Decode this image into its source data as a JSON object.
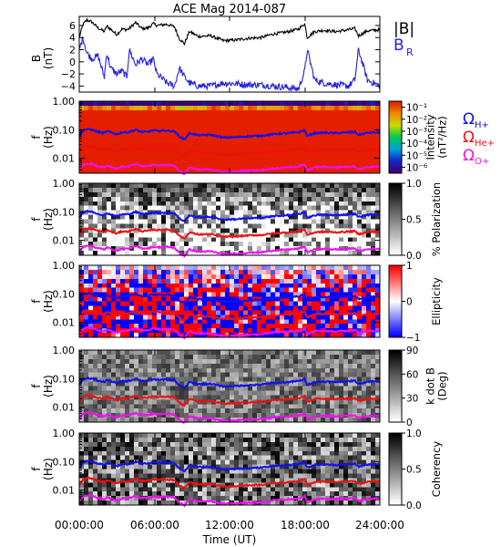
{
  "chart_data": {
    "type": "line",
    "title": "ACE Mag 2014-087",
    "xlabel": "Time (UT)",
    "x_ticks": [
      "00:00:00",
      "06:00:00",
      "12:00:00",
      "18:00:00",
      "24:00:00"
    ],
    "x_range_hours": [
      0,
      24
    ],
    "b_panel": {
      "ylabel": [
        "B",
        "(nT)"
      ],
      "y_ticks": [
        6,
        4,
        2,
        0,
        -2,
        -4
      ],
      "ylim": [
        -5,
        7.5
      ],
      "series": [
        {
          "name": "|B|",
          "color": "#000000",
          "t_hours": [
            0,
            0.3,
            0.6,
            1.0,
            1.5,
            2.0,
            2.2,
            2.5,
            3.0,
            3.4,
            3.8,
            4.0,
            4.5,
            5.0,
            5.5,
            5.9,
            6.2,
            7.0,
            7.6,
            8.0,
            8.4,
            8.8,
            9.5,
            10.5,
            11.5,
            12.5,
            13.5,
            14.5,
            15.5,
            16.5,
            17.5,
            18.0,
            18.2,
            18.8,
            19.5,
            20.5,
            21.5,
            22.0,
            22.3,
            23.0,
            24.0
          ],
          "values": [
            4.0,
            6.2,
            6.9,
            6.6,
            5.6,
            5.0,
            5.9,
            5.4,
            4.5,
            5.4,
            5.3,
            5.5,
            6.5,
            5.5,
            5.6,
            6.3,
            6.0,
            6.2,
            5.8,
            3.8,
            3.0,
            5.0,
            4.2,
            4.3,
            3.5,
            3.6,
            3.9,
            4.0,
            4.6,
            4.9,
            5.4,
            6.3,
            4.0,
            5.0,
            5.2,
            5.0,
            5.3,
            5.5,
            4.3,
            5.1,
            5.3
          ]
        },
        {
          "name": "B_R",
          "color": "#2222dd",
          "t_hours": [
            0,
            0.3,
            0.6,
            1.0,
            1.5,
            2.0,
            2.2,
            2.5,
            3.0,
            3.4,
            3.8,
            4.0,
            4.5,
            5.0,
            5.5,
            5.9,
            6.2,
            7.0,
            7.6,
            8.0,
            8.4,
            8.8,
            9.5,
            10.5,
            11.5,
            12.5,
            13.5,
            14.5,
            15.5,
            16.5,
            17.5,
            18.0,
            18.2,
            18.8,
            19.5,
            20.5,
            21.5,
            22.0,
            22.3,
            23.0,
            24.0
          ],
          "values": [
            2.0,
            4.0,
            1.5,
            0.5,
            1.0,
            -2.5,
            1.5,
            -1.0,
            -2.0,
            -1.5,
            -2.5,
            2.0,
            -0.5,
            0.5,
            -0.5,
            0.5,
            -2.0,
            -3.5,
            -4.0,
            -1.0,
            -2.5,
            -3.5,
            -4.0,
            -4.0,
            -3.5,
            -3.6,
            -3.8,
            -3.8,
            -4.0,
            -4.2,
            -4.5,
            -1.5,
            2.0,
            -3.0,
            -3.5,
            -3.8,
            -4.0,
            -3.0,
            2.0,
            -3.0,
            -4.0
          ]
        }
      ]
    },
    "spectral_panels": {
      "ylabel": [
        "f",
        "(Hz)"
      ],
      "y_ticks": [
        "1.00",
        "0.10",
        "0.01"
      ],
      "ylim_hz": [
        0.003,
        1.0
      ],
      "y_scale": "log",
      "gyrofrequency_lines": [
        {
          "name": "ΩH+",
          "color": "#1111ee",
          "t_hours": [
            0,
            0.3,
            0.6,
            1.0,
            1.5,
            2.0,
            2.2,
            2.5,
            3.0,
            3.4,
            3.8,
            4.0,
            4.5,
            5.0,
            5.5,
            5.9,
            6.2,
            7.0,
            7.6,
            8.0,
            8.4,
            8.8,
            9.5,
            10.5,
            11.5,
            12.5,
            13.5,
            14.5,
            15.5,
            16.5,
            17.5,
            18.0,
            18.2,
            18.8,
            19.5,
            20.5,
            21.5,
            22.0,
            22.3,
            23.0,
            24.0
          ],
          "values_hz": [
            0.061,
            0.094,
            0.105,
            0.1,
            0.085,
            0.076,
            0.09,
            0.082,
            0.069,
            0.082,
            0.081,
            0.084,
            0.099,
            0.084,
            0.085,
            0.096,
            0.091,
            0.094,
            0.088,
            0.058,
            0.046,
            0.076,
            0.064,
            0.066,
            0.053,
            0.055,
            0.059,
            0.061,
            0.07,
            0.075,
            0.082,
            0.096,
            0.061,
            0.076,
            0.079,
            0.076,
            0.081,
            0.084,
            0.066,
            0.078,
            0.081
          ]
        },
        {
          "name": "ΩHe+",
          "color": "#ee1111",
          "t_hours": [
            0,
            0.3,
            0.6,
            1.0,
            1.5,
            2.0,
            2.2,
            2.5,
            3.0,
            3.4,
            3.8,
            4.0,
            4.5,
            5.0,
            5.5,
            5.9,
            6.2,
            7.0,
            7.6,
            8.0,
            8.4,
            8.8,
            9.5,
            10.5,
            11.5,
            12.5,
            13.5,
            14.5,
            15.5,
            16.5,
            17.5,
            18.0,
            18.2,
            18.8,
            19.5,
            20.5,
            21.5,
            22.0,
            22.3,
            23.0,
            24.0
          ],
          "values_hz": [
            0.0153,
            0.0236,
            0.0263,
            0.0251,
            0.0213,
            0.0191,
            0.0225,
            0.0206,
            0.0172,
            0.0206,
            0.0202,
            0.021,
            0.0248,
            0.021,
            0.0213,
            0.024,
            0.0229,
            0.0236,
            0.0221,
            0.0145,
            0.0114,
            0.0191,
            0.016,
            0.0164,
            0.0133,
            0.0137,
            0.0149,
            0.0153,
            0.0175,
            0.0187,
            0.0206,
            0.024,
            0.0153,
            0.0191,
            0.0198,
            0.0191,
            0.0202,
            0.021,
            0.0164,
            0.0194,
            0.0202
          ]
        },
        {
          "name": "ΩO+",
          "color": "#ee11ee",
          "t_hours": [
            0,
            0.3,
            0.6,
            1.0,
            1.5,
            2.0,
            2.2,
            2.5,
            3.0,
            3.4,
            3.8,
            4.0,
            4.5,
            5.0,
            5.5,
            5.9,
            6.2,
            7.0,
            7.6,
            8.0,
            8.4,
            8.8,
            9.5,
            10.5,
            11.5,
            12.5,
            13.5,
            14.5,
            15.5,
            16.5,
            17.5,
            18.0,
            18.2,
            18.8,
            19.5,
            20.5,
            21.5,
            22.0,
            22.3,
            23.0,
            24.0
          ],
          "values_hz": [
            0.0038,
            0.0059,
            0.0066,
            0.0063,
            0.0053,
            0.0048,
            0.0056,
            0.0051,
            0.0043,
            0.0051,
            0.0051,
            0.0053,
            0.0062,
            0.0053,
            0.0053,
            0.006,
            0.0057,
            0.0059,
            0.0055,
            0.0036,
            0.0029,
            0.0048,
            0.004,
            0.0041,
            0.0033,
            0.0034,
            0.0037,
            0.0038,
            0.0044,
            0.0047,
            0.0051,
            0.006,
            0.0038,
            0.0048,
            0.005,
            0.0048,
            0.0051,
            0.0053,
            0.0041,
            0.0049,
            0.0051
          ]
        }
      ],
      "panels": [
        {
          "kind": "intensity",
          "colorbar_label": [
            "Intensity",
            "(nT²/Hz)"
          ],
          "colorbar_ticks": [
            "10⁻¹",
            "10⁻²",
            "10⁻³",
            "10⁻⁴",
            "10⁻⁵",
            "10⁻⁶"
          ],
          "colorbar_range_log10": [
            -6.5,
            -0.5
          ]
        },
        {
          "kind": "polarization",
          "colorbar_label": [
            "% Polarization"
          ],
          "colorbar_ticks": [
            "1.0",
            "0.5",
            "0.0"
          ],
          "colorbar_range": [
            0,
            1
          ]
        },
        {
          "kind": "ellipticity",
          "colorbar_label": [
            "Ellipticity"
          ],
          "colorbar_ticks": [
            "1",
            "0",
            "−1"
          ],
          "colorbar_range": [
            -1,
            1
          ]
        },
        {
          "kind": "kdotb",
          "colorbar_label": [
            "k dot B",
            "(Deg)"
          ],
          "colorbar_ticks": [
            "90",
            "60",
            "30",
            "0"
          ],
          "colorbar_range": [
            0,
            90
          ]
        },
        {
          "kind": "coherency",
          "colorbar_label": [
            "Coherency"
          ],
          "colorbar_ticks": [
            "1.0",
            "0.5",
            "0.0"
          ],
          "colorbar_range": [
            0,
            1
          ]
        }
      ]
    },
    "legend_labels": {
      "b": [
        {
          "text": "|B|",
          "color": "#000000"
        },
        {
          "text": "B",
          "sub": "R",
          "color": "#2222dd"
        }
      ],
      "omega": [
        {
          "text": "Ω",
          "sub": "H+",
          "color": "#1111ee"
        },
        {
          "text": "Ω",
          "sub": "He+",
          "color": "#ee1111"
        },
        {
          "text": "Ω",
          "sub": "O+",
          "color": "#ee11ee"
        }
      ]
    }
  }
}
